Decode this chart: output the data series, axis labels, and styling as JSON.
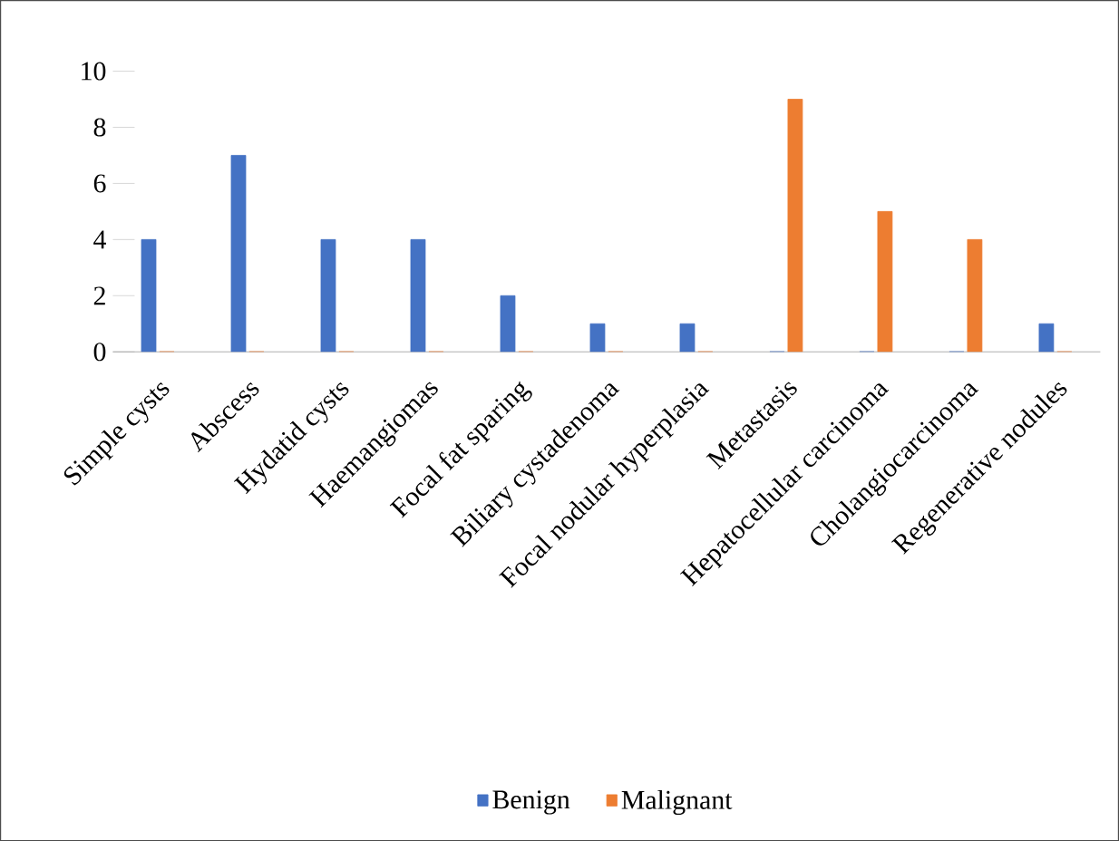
{
  "chart_data": {
    "type": "bar",
    "categories": [
      "Simple cysts",
      "Abscess",
      "Hydatid cysts",
      "Haemangiomas",
      "Focal fat sparing",
      "Biliary cystadenoma",
      "Focal nodular hyperplasia",
      "Metastasis",
      "Hepatocellular carcinoma",
      "Cholangiocarcinoma",
      "Regenerative nodules"
    ],
    "series": [
      {
        "name": "Benign",
        "color": "#4472c4",
        "values": [
          4,
          7,
          4,
          4,
          2,
          1,
          1,
          0,
          0,
          0,
          1
        ]
      },
      {
        "name": "Malignant",
        "color": "#ed7d31",
        "values": [
          0,
          0,
          0,
          0,
          0,
          0,
          0,
          9,
          5,
          4,
          0
        ]
      }
    ],
    "ylim": [
      0,
      10
    ],
    "yticks": [
      0,
      2,
      4,
      6,
      8,
      10
    ],
    "grid": false,
    "legend": "bottom"
  }
}
